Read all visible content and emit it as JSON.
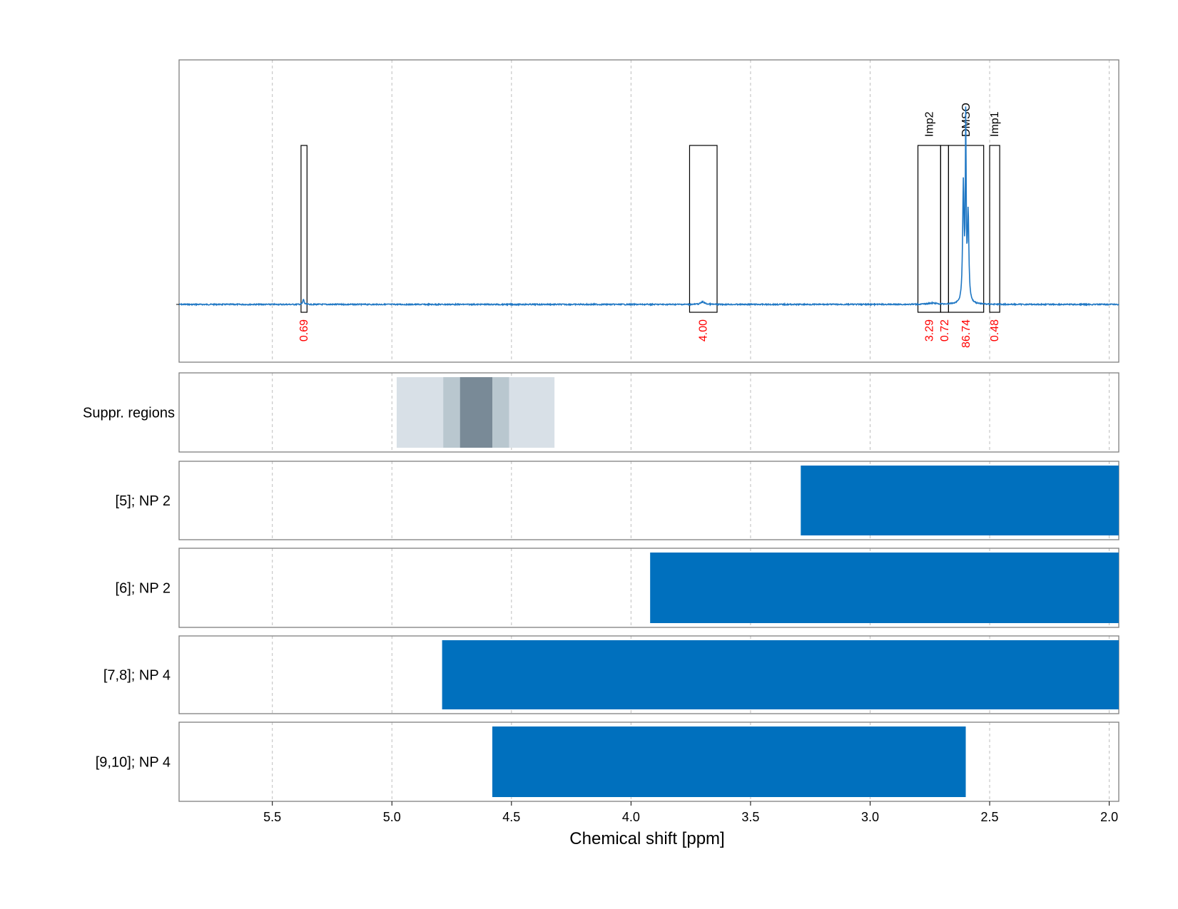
{
  "chart_data": {
    "type": "nmr-spectrum-with-range-bars",
    "xlabel": "Chemical shift [ppm]",
    "x_axis": {
      "reversed": true,
      "xlim": [
        5.89,
        1.96
      ],
      "ticks": [
        5.5,
        5.0,
        4.5,
        4.0,
        3.5,
        3.0,
        2.5,
        2.0
      ],
      "tick_labels": [
        "5.5",
        "5.0",
        "4.5",
        "4.0",
        "3.5",
        "3.0",
        "2.5",
        "2.0"
      ]
    },
    "grid": true,
    "spectrum": {
      "color": "#1f77c4",
      "baseline": 0.0,
      "peaks": [
        {
          "ppm": 5.37,
          "height": 0.025,
          "width": 0.003
        },
        {
          "ppm": 3.7,
          "height": 0.012,
          "width": 0.01
        },
        {
          "ppm": 2.74,
          "height": 0.006,
          "width": 0.02
        },
        {
          "ppm": 2.61,
          "height": 0.56,
          "width": 0.0035
        },
        {
          "ppm": 2.6,
          "height": 0.85,
          "width": 0.002
        },
        {
          "ppm": 2.59,
          "height": 0.42,
          "width": 0.0035
        }
      ]
    },
    "integration_regions": [
      {
        "from": 5.38,
        "to": 5.355,
        "value": "0.69",
        "label": ""
      },
      {
        "from": 3.755,
        "to": 3.64,
        "value": "4.00",
        "label": ""
      },
      {
        "from": 2.8,
        "to": 2.705,
        "value": "3.29",
        "label": "Imp2"
      },
      {
        "from": 2.705,
        "to": 2.672,
        "value": "0.72",
        "label": ""
      },
      {
        "from": 2.672,
        "to": 2.525,
        "value": "86.74",
        "label": "DMSO"
      },
      {
        "from": 2.5,
        "to": 2.458,
        "value": "0.48",
        "label": "Imp1"
      }
    ],
    "value_color": "#ff0000",
    "suppression": {
      "label": "Suppr. regions",
      "bands": [
        {
          "from": 4.98,
          "to": 4.32,
          "shade": 1
        },
        {
          "from": 4.785,
          "to": 4.51,
          "shade": 2
        },
        {
          "from": 4.715,
          "to": 4.58,
          "shade": 3
        }
      ],
      "shade_colors": [
        "#d8e0e7",
        "#b9c7cf",
        "#798a97"
      ]
    },
    "range_bars": [
      {
        "label": "[5]; NP 2",
        "from": 3.29,
        "to": 1.96
      },
      {
        "label": "[6]; NP 2",
        "from": 3.92,
        "to": 1.96
      },
      {
        "label": "[7,8]; NP 4",
        "from": 4.79,
        "to": 1.96
      },
      {
        "label": "[9,10]; NP 4",
        "from": 4.58,
        "to": 2.6
      }
    ],
    "bar_color": "#0070be"
  }
}
